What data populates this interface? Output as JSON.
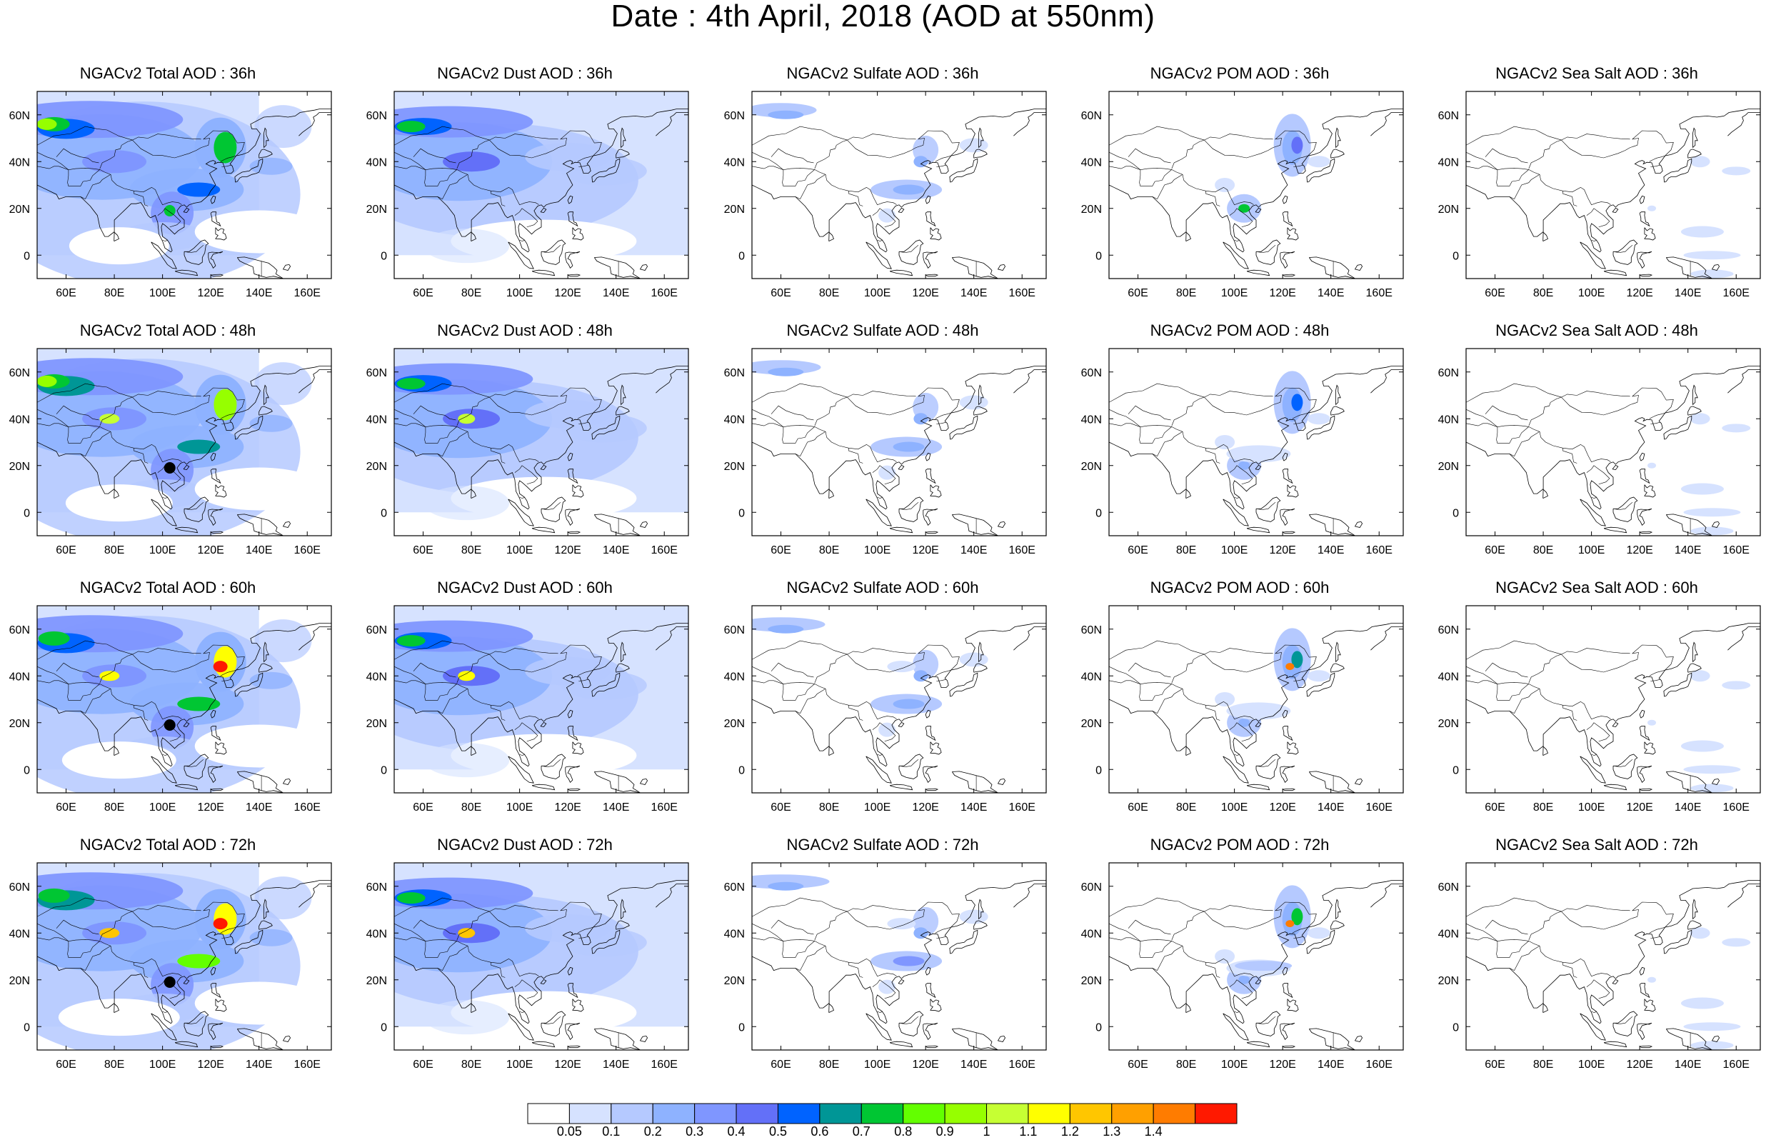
{
  "title": "Date : 4th April, 2018 (AOD at 550nm)",
  "rows": [
    "36h",
    "48h",
    "60h",
    "72h"
  ],
  "panel_titles": [
    [
      "NGACv2 Total AOD : 36h",
      "NGACv2 Dust AOD : 36h",
      "NGACv2 Sulfate AOD : 36h",
      "NGACv2 POM AOD : 36h",
      "NGACv2 Sea Salt AOD : 36h"
    ],
    [
      "NGACv2 Total AOD : 48h",
      "NGACv2 Dust AOD : 48h",
      "NGACv2 Sulfate AOD : 48h",
      "NGACv2 POM AOD : 48h",
      "NGACv2 Sea Salt AOD : 48h"
    ],
    [
      "NGACv2 Total AOD : 60h",
      "NGACv2 Dust AOD : 60h",
      "NGACv2 Sulfate AOD : 60h",
      "NGACv2 POM AOD : 60h",
      "NGACv2 Sea Salt AOD : 60h"
    ],
    [
      "NGACv2 Total AOD : 72h",
      "NGACv2 Dust AOD : 72h",
      "NGACv2 Sulfate AOD : 72h",
      "NGACv2 POM AOD : 72h",
      "NGACv2 Sea Salt  AOD : 72h"
    ]
  ],
  "map": {
    "lon_range": [
      48,
      170
    ],
    "lat_range": [
      -10,
      70
    ],
    "lon_ticks": [
      60,
      80,
      100,
      120,
      140,
      160
    ],
    "lon_tick_labels": [
      "60E",
      "80E",
      "100E",
      "120E",
      "140E",
      "160E"
    ],
    "lat_ticks": [
      60,
      40,
      20,
      0
    ],
    "lat_tick_labels": [
      "60N",
      "40N",
      "20N",
      "0"
    ]
  },
  "colorbar": {
    "colors": [
      "#ffffff",
      "#d6e2ff",
      "#b5c9ff",
      "#8eb2ff",
      "#7f96ff",
      "#6370f8",
      "#0063ff",
      "#009696",
      "#00c633",
      "#63ff00",
      "#96ff00",
      "#c6ff33",
      "#ffff00",
      "#ffc600",
      "#ffa000",
      "#ff7c00",
      "#ff1900"
    ],
    "labels": [
      "0.05",
      "0.1",
      "0.2",
      "0.3",
      "0.4",
      "0.5",
      "0.6",
      "0.7",
      "0.8",
      "0.9",
      "1",
      "1.1",
      "1.2",
      "1.3",
      "1.4"
    ]
  }
}
